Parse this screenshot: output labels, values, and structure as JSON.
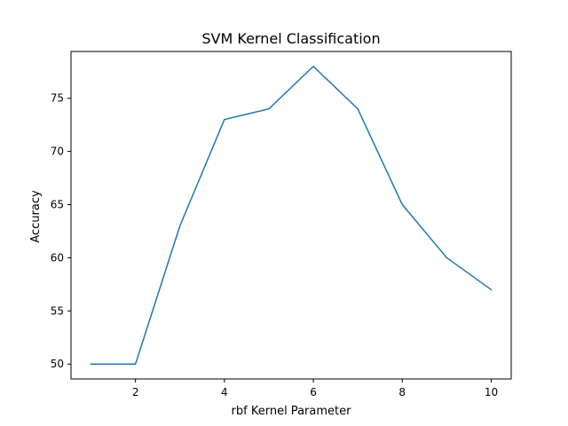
{
  "chart_data": {
    "type": "line",
    "title": "SVM Kernel Classification",
    "xlabel": "rbf Kernel Parameter",
    "ylabel": "Accuracy",
    "x": [
      1,
      2,
      3,
      4,
      5,
      6,
      7,
      8,
      9,
      10
    ],
    "series": [
      {
        "values": [
          50,
          50,
          63,
          73,
          74,
          78,
          74,
          65,
          60,
          57
        ],
        "color": "#1f77b4"
      }
    ],
    "xlim": [
      0.55,
      10.45
    ],
    "ylim": [
      48.6,
      79.4
    ],
    "xticks": [
      2,
      4,
      6,
      8,
      10
    ],
    "xtick_labels": [
      "2",
      "4",
      "6",
      "8",
      "10"
    ],
    "yticks": [
      50,
      55,
      60,
      65,
      70,
      75
    ],
    "ytick_labels": [
      "50",
      "55",
      "60",
      "65",
      "70",
      "75"
    ],
    "grid": false,
    "legend": "none"
  }
}
